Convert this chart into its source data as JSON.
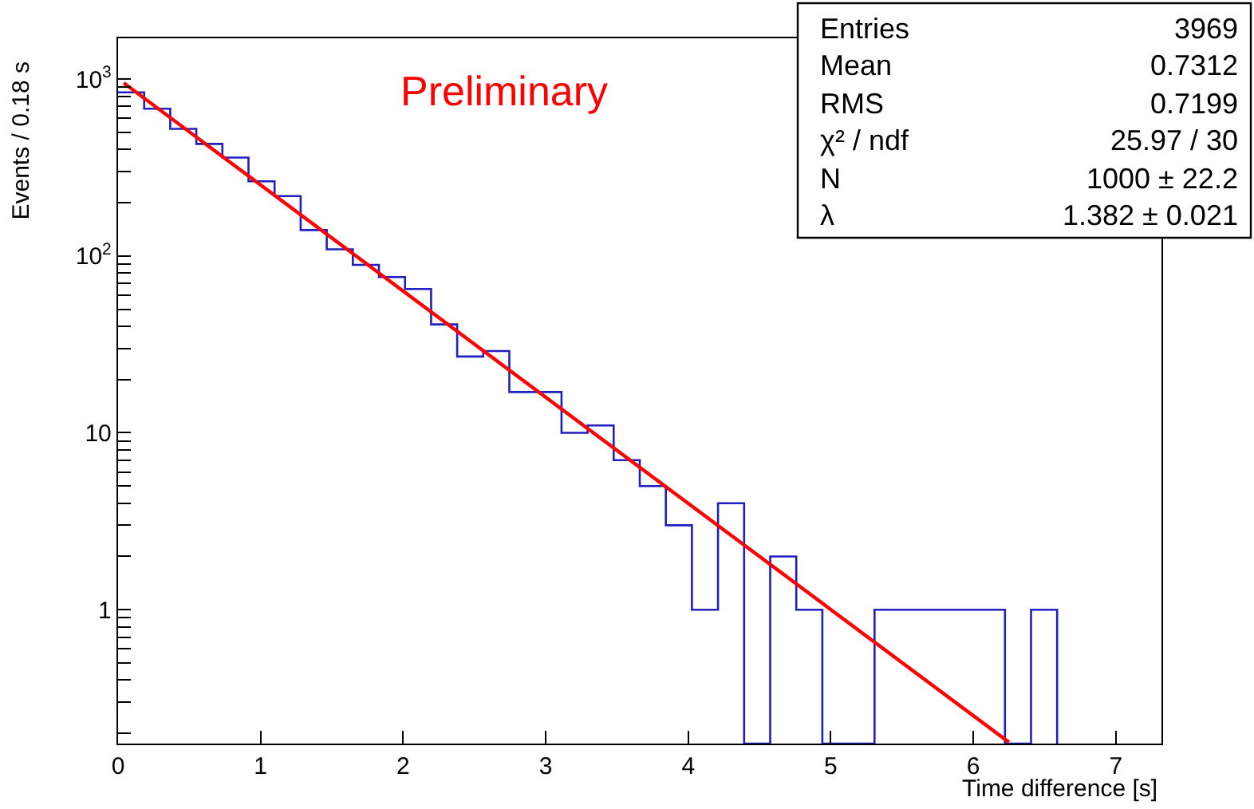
{
  "chart_data": {
    "type": "histogram",
    "xlabel": "Time difference [s]",
    "ylabel": "Events / 0.18 s",
    "bins": [
      0,
      0.183,
      0.366,
      0.549,
      0.732,
      0.915,
      1.098,
      1.281,
      1.464,
      1.647,
      1.83,
      2.013,
      2.196,
      2.379,
      2.562,
      2.745,
      2.928,
      3.111,
      3.294,
      3.477,
      3.66,
      3.843,
      4.026,
      4.209,
      4.392,
      4.575,
      4.758,
      4.941,
      5.124,
      5.307,
      5.49,
      5.673,
      5.856,
      6.039,
      6.222,
      6.405,
      6.588
    ],
    "series": [
      {
        "color": "#2020c0",
        "values": [
          841,
          680,
          523,
          430,
          360,
          264,
          218,
          140,
          109,
          89,
          76,
          65,
          41,
          27,
          29,
          17,
          17,
          10,
          11,
          7,
          5,
          3,
          1,
          4,
          null,
          2,
          1,
          null,
          null,
          1,
          1,
          1,
          1,
          1,
          null,
          1
        ]
      },
      {
        "type": "line",
        "color": "#ff0000",
        "x": [
          0.04,
          6.25
        ],
        "values": [
          950,
          0.178
        ]
      }
    ],
    "log": "y",
    "marker": "none",
    "line_style": "solid",
    "xlim": [
      0,
      7.32
    ],
    "xticks": [
      0,
      1,
      2,
      3,
      4,
      5,
      6,
      7
    ],
    "ylim": [
      0.175,
      1700
    ],
    "yticks": [
      {
        "value": 0.2,
        "label": null
      },
      {
        "value": 0.3,
        "label": null
      },
      {
        "value": 0.4,
        "label": null
      },
      {
        "value": 0.5,
        "label": null
      },
      {
        "value": 0.6,
        "label": null
      },
      {
        "value": 0.7,
        "label": null
      },
      {
        "value": 0.8,
        "label": null
      },
      {
        "value": 0.9,
        "label": null
      },
      1,
      {
        "value": 2,
        "label": null
      },
      {
        "value": 3,
        "label": null
      },
      {
        "value": 4,
        "label": null
      },
      {
        "value": 5,
        "label": null
      },
      {
        "value": 6,
        "label": null
      },
      {
        "value": 7,
        "label": null
      },
      {
        "value": 8,
        "label": null
      },
      {
        "value": 9,
        "label": null
      },
      10,
      {
        "value": 20,
        "label": null
      },
      {
        "value": 30,
        "label": null
      },
      {
        "value": 40,
        "label": null
      },
      {
        "value": 50,
        "label": null
      },
      {
        "value": 60,
        "label": null
      },
      {
        "value": 70,
        "label": null
      },
      {
        "value": 80,
        "label": null
      },
      {
        "value": 90,
        "label": null
      },
      {
        "value": 100,
        "label": "10$^{2}$"
      },
      {
        "value": 200,
        "label": null
      },
      {
        "value": 300,
        "label": null
      },
      {
        "value": 400,
        "label": null
      },
      {
        "value": 500,
        "label": null
      },
      {
        "value": 600,
        "label": null
      },
      {
        "value": 700,
        "label": null
      },
      {
        "value": 800,
        "label": null
      },
      {
        "value": 900,
        "label": null
      },
      {
        "value": 1000,
        "label": "10$^{3}$"
      }
    ],
    "annotations": [
      "Preliminary",
      "Entries",
      "3969",
      "Mean",
      "0.7312",
      "RMS",
      "0.7199",
      "χ² / ndf",
      "25.97 / 30",
      "N",
      "1000 ± 22.2",
      "λ",
      "1.382 ± 0.021"
    ]
  }
}
